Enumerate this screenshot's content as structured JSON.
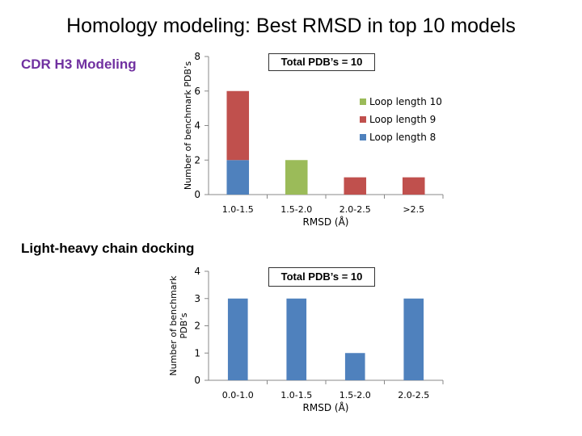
{
  "slide": {
    "title": "Homology modeling: Best RMSD in top 10 models",
    "section_1": "CDR H3 Modeling",
    "section_2": "Light-heavy chain docking"
  },
  "colors": {
    "blue": "#4F81BD",
    "red": "#C0504D",
    "green": "#9BBB59",
    "section_1": "#7030A0",
    "section_2": "#000000"
  },
  "chart_data": [
    {
      "type": "bar",
      "stacked": true,
      "annotation": "Total PDB’s = 10",
      "xlabel": "RMSD (Å)",
      "ylabel": "Number of benchmark PDB’s",
      "ylim": [
        0,
        8
      ],
      "yticks": [
        0,
        2,
        4,
        6,
        8
      ],
      "grid": false,
      "legend_position": "right",
      "categories": [
        "1.0-1.5",
        "1.5-2.0",
        "2.0-2.5",
        ">2.5"
      ],
      "series": [
        {
          "name": "Loop length 8",
          "color": "#4F81BD",
          "values": [
            2,
            0,
            0,
            0
          ]
        },
        {
          "name": "Loop length 9",
          "color": "#C0504D",
          "values": [
            4,
            0,
            1,
            1
          ]
        },
        {
          "name": "Loop length 10",
          "color": "#9BBB59",
          "values": [
            0,
            2,
            0,
            0
          ]
        }
      ],
      "legend_order": [
        "Loop length 10",
        "Loop length 9",
        "Loop length 8"
      ]
    },
    {
      "type": "bar",
      "annotation": "Total PDB’s = 10",
      "xlabel": "RMSD (Å)",
      "ylabel": "Number of benchmark PDB’s",
      "ylim": [
        0,
        4
      ],
      "yticks": [
        0,
        1,
        2,
        3,
        4
      ],
      "grid": false,
      "categories": [
        "0.0-1.0",
        "1.0-1.5",
        "1.5-2.0",
        "2.0-2.5"
      ],
      "series": [
        {
          "color": "#4F81BD",
          "values": [
            3,
            3,
            1,
            3
          ]
        }
      ]
    }
  ]
}
